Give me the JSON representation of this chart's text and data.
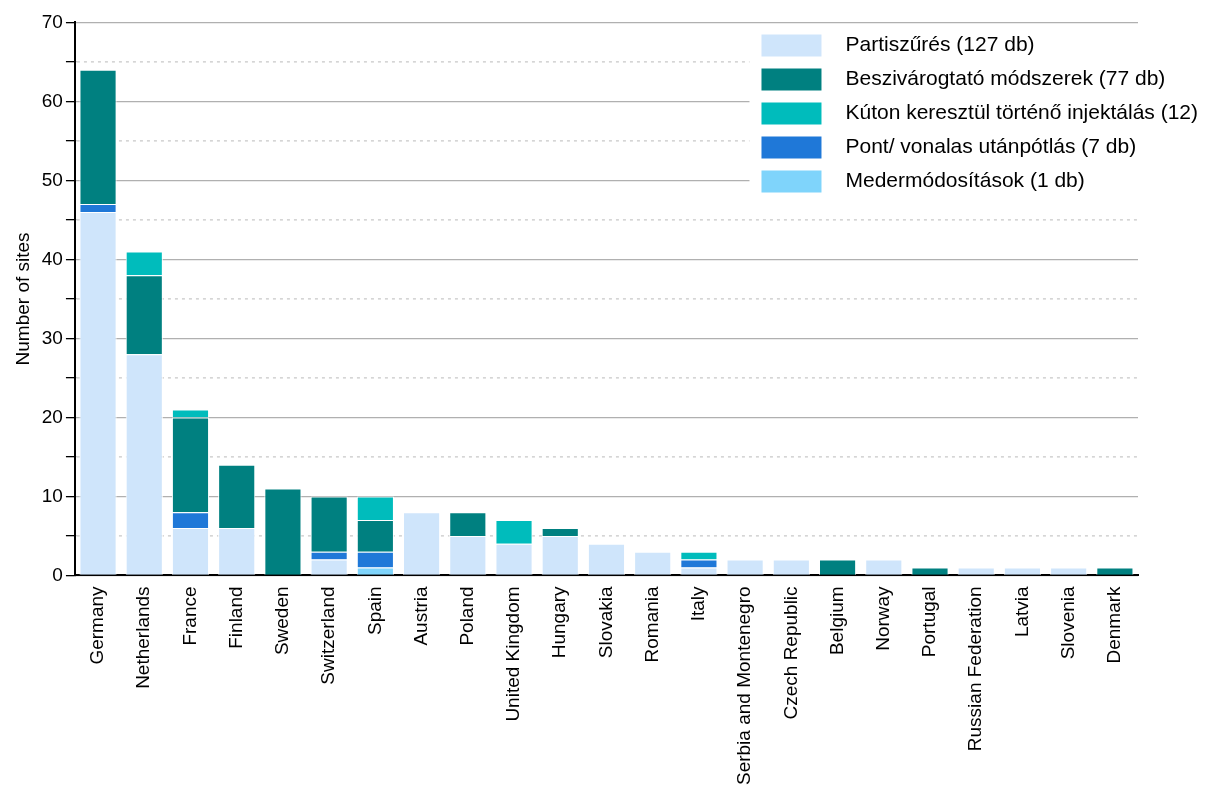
{
  "chart_data": {
    "type": "bar",
    "stacked": true,
    "ylabel": "Number of sites",
    "categories": [
      "Germany",
      "Netherlands",
      "France",
      "Finland",
      "Sweden",
      "Switzerland",
      "Spain",
      "Austria",
      "Poland",
      "United Kingdom",
      "Hungary",
      "Slovakia",
      "Romania",
      "Italy",
      "Serbia and Montenegro",
      "Czech Republic",
      "Belgium",
      "Norway",
      "Portugal",
      "Russian Federation",
      "Latvia",
      "Slovenia",
      "Denmark"
    ],
    "series": [
      {
        "name": "Medermódosítások (1 db)",
        "color": "#7fd4fb",
        "values": [
          0,
          0,
          0,
          0,
          0,
          0,
          1,
          0,
          0,
          0,
          0,
          0,
          0,
          0,
          0,
          0,
          0,
          0,
          0,
          0,
          0,
          0,
          0
        ]
      },
      {
        "name": "Partiszűrés (127 db)",
        "color": "#cfe5fb",
        "values": [
          46,
          28,
          6,
          6,
          0,
          2,
          0,
          8,
          5,
          4,
          5,
          4,
          3,
          1,
          2,
          2,
          0,
          2,
          0,
          1,
          1,
          1,
          0
        ]
      },
      {
        "name": "Pont/ vonalas utánpótlás (7 db)",
        "color": "#1f78d8",
        "values": [
          1,
          0,
          2,
          0,
          0,
          1,
          2,
          0,
          0,
          0,
          0,
          0,
          0,
          1,
          0,
          0,
          0,
          0,
          0,
          0,
          0,
          0,
          0
        ]
      },
      {
        "name": "Beszivárogtató módszerek (77 db)",
        "color": "#008080",
        "values": [
          17,
          10,
          12,
          8,
          11,
          7,
          4,
          0,
          3,
          0,
          1,
          0,
          0,
          0,
          0,
          0,
          2,
          0,
          1,
          0,
          0,
          0,
          1
        ]
      },
      {
        "name": "Kúton keresztül történő injektálás (12)",
        "color": "#00bcbc",
        "values": [
          0,
          3,
          1,
          0,
          0,
          0,
          3,
          0,
          0,
          3,
          0,
          0,
          0,
          1,
          0,
          0,
          0,
          0,
          0,
          0,
          0,
          0,
          0
        ]
      }
    ],
    "ylim": [
      0,
      70
    ],
    "yticks": [
      0,
      {
        "value": 5,
        "label": null
      },
      10,
      {
        "value": 15,
        "label": null
      },
      20,
      {
        "value": 25,
        "label": null
      },
      30,
      {
        "value": 35,
        "label": null
      },
      40,
      {
        "value": 45,
        "label": null
      },
      50,
      {
        "value": 55,
        "label": null
      },
      60,
      {
        "value": 65,
        "label": null
      },
      70
    ],
    "grid": "y",
    "legend": "top right"
  }
}
